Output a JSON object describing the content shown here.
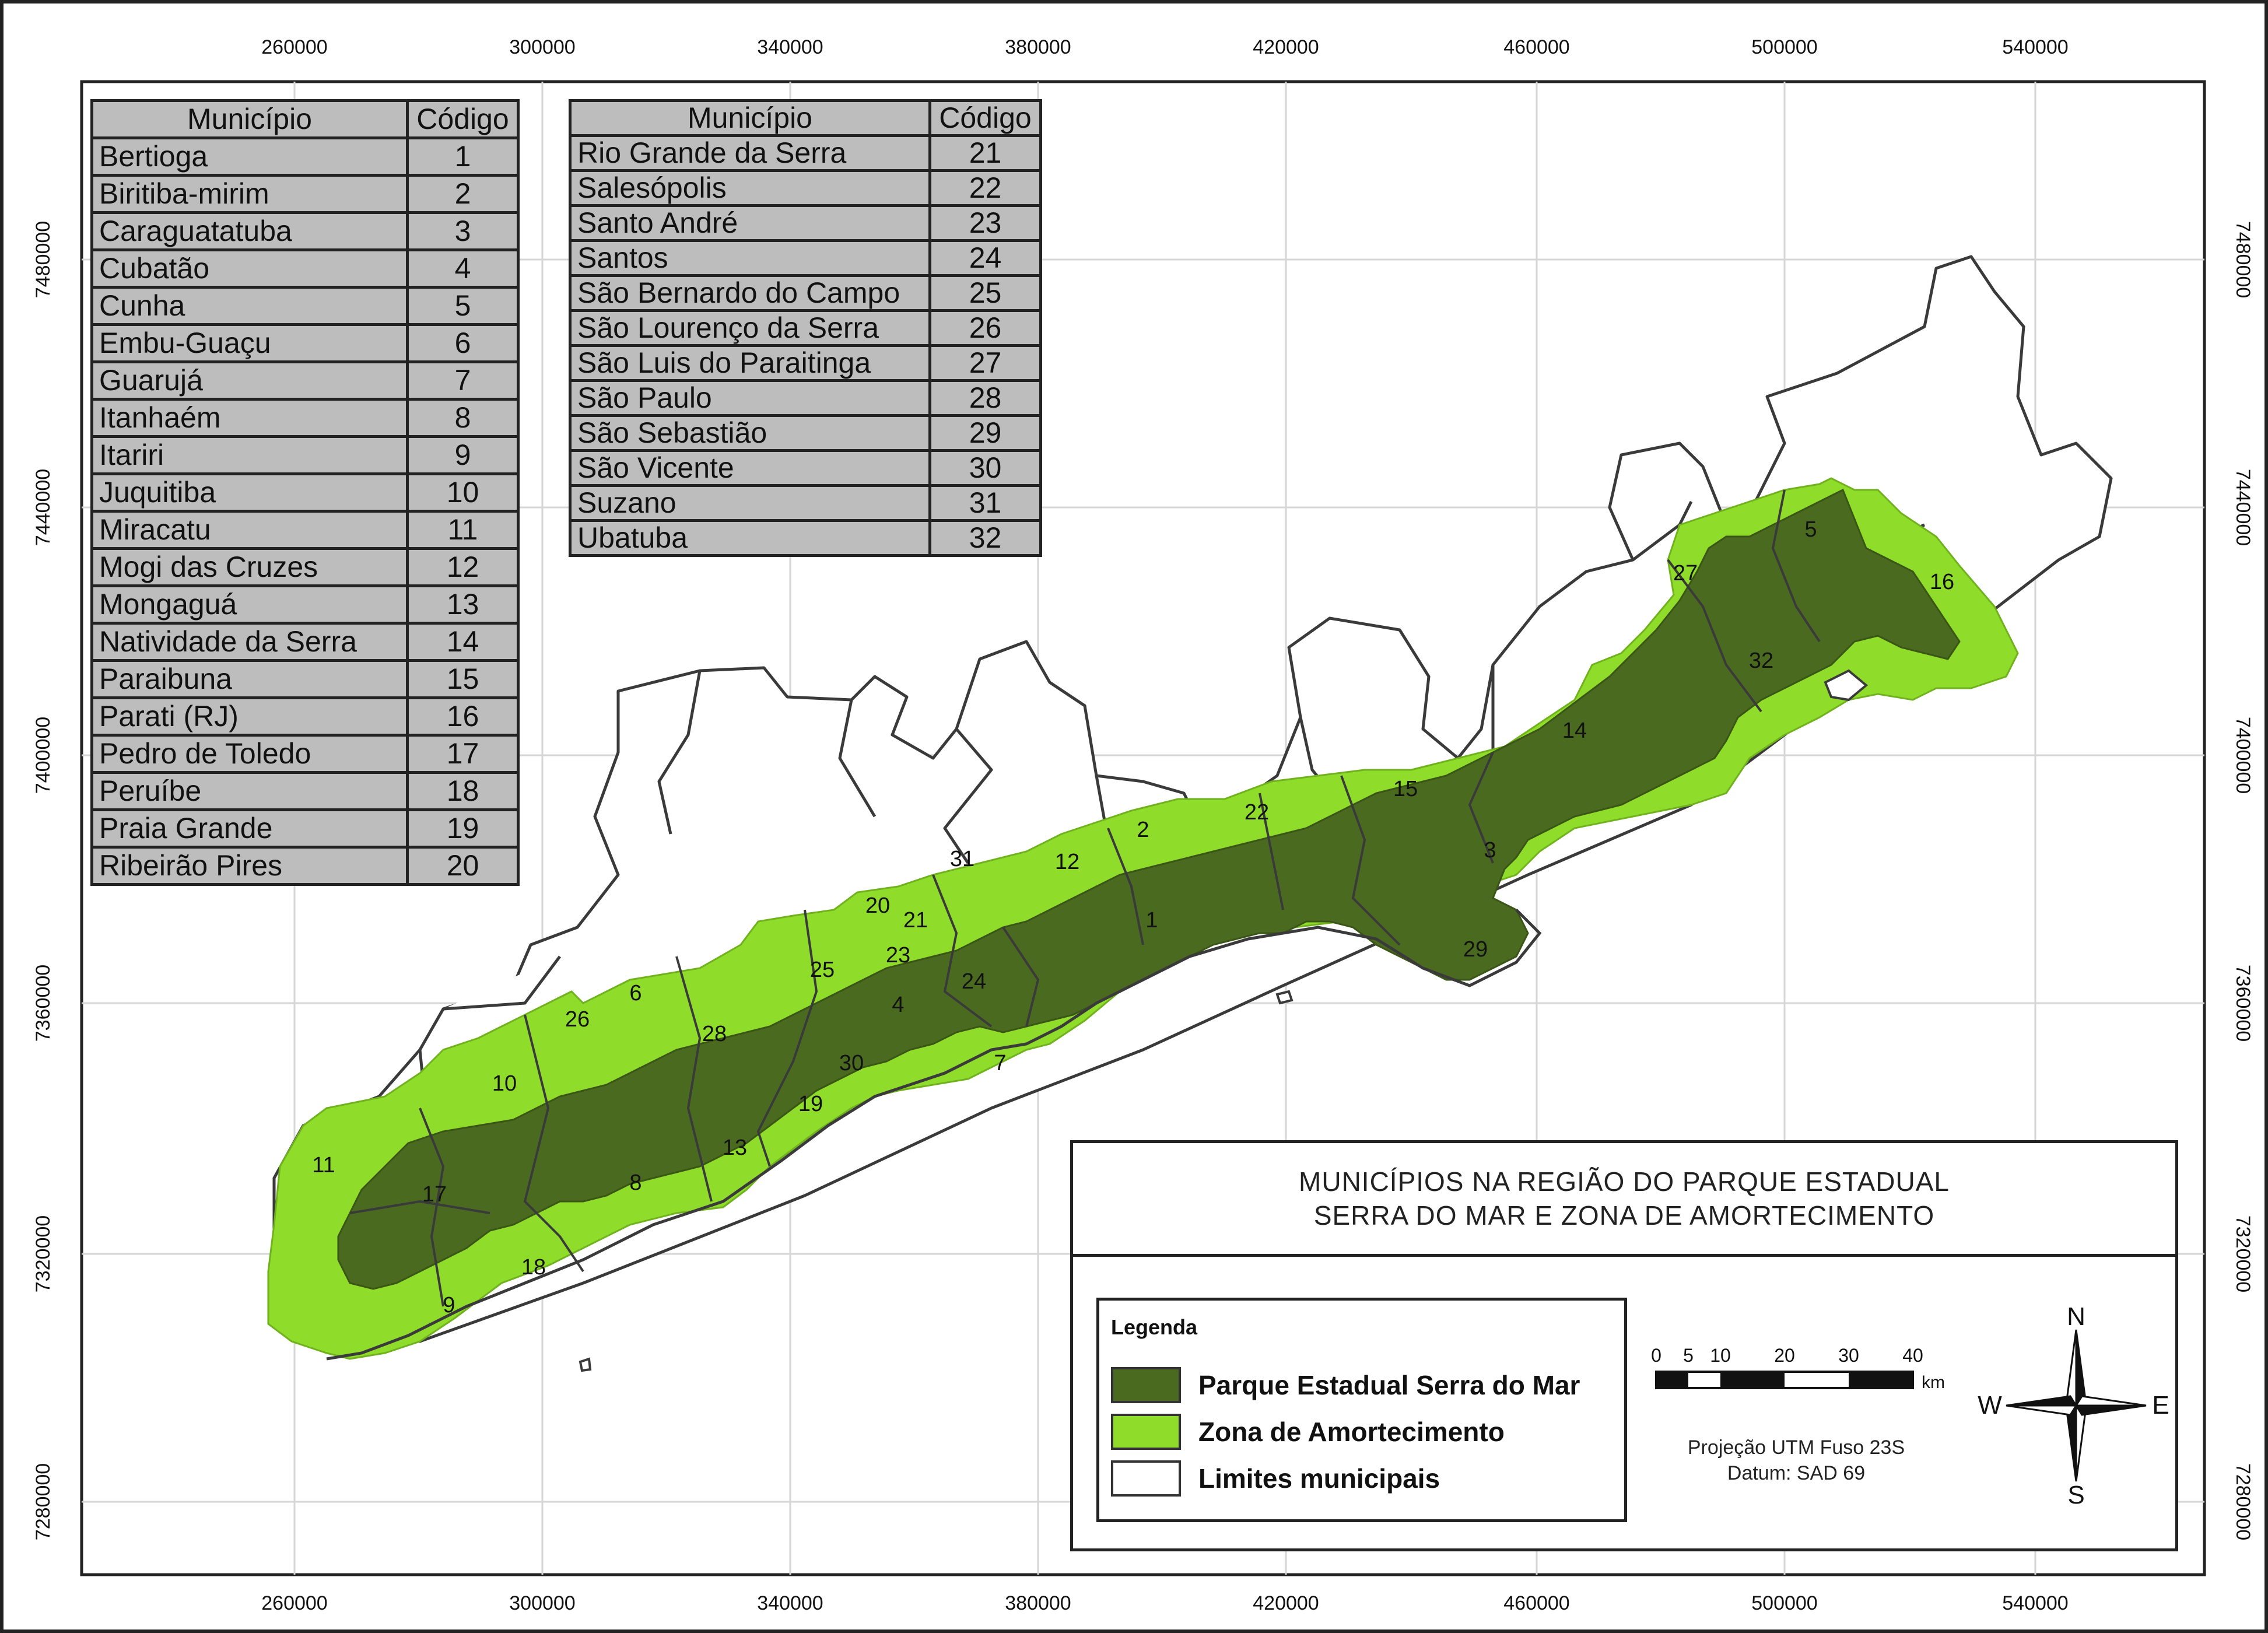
{
  "map_title": {
    "line1": "MUNICÍPIOS NA REGIÃO DO PARQUE ESTADUAL",
    "line2": "SERRA DO MAR E ZONA DE AMORTECIMENTO"
  },
  "axes": {
    "x_ticks": [
      "260000",
      "300000",
      "340000",
      "380000",
      "420000",
      "460000",
      "500000",
      "540000"
    ],
    "y_ticks": [
      "7480000",
      "7440000",
      "7400000",
      "7360000",
      "7320000",
      "7280000"
    ]
  },
  "table_headers": {
    "municipio": "Município",
    "codigo": "Código"
  },
  "table1": [
    {
      "name": "Bertioga",
      "code": "1"
    },
    {
      "name": "Biritiba-mirim",
      "code": "2"
    },
    {
      "name": "Caraguatatuba",
      "code": "3"
    },
    {
      "name": "Cubatão",
      "code": "4"
    },
    {
      "name": "Cunha",
      "code": "5"
    },
    {
      "name": "Embu-Guaçu",
      "code": "6"
    },
    {
      "name": "Guarujá",
      "code": "7"
    },
    {
      "name": "Itanhaém",
      "code": "8"
    },
    {
      "name": "Itariri",
      "code": "9"
    },
    {
      "name": "Juquitiba",
      "code": "10"
    },
    {
      "name": "Miracatu",
      "code": "11"
    },
    {
      "name": "Mogi das Cruzes",
      "code": "12"
    },
    {
      "name": "Mongaguá",
      "code": "13"
    },
    {
      "name": "Natividade da Serra",
      "code": "14"
    },
    {
      "name": "Paraibuna",
      "code": "15"
    },
    {
      "name": "Parati (RJ)",
      "code": "16"
    },
    {
      "name": "Pedro de Toledo",
      "code": "17"
    },
    {
      "name": "Peruíbe",
      "code": "18"
    },
    {
      "name": "Praia Grande",
      "code": "19"
    },
    {
      "name": "Ribeirão Pires",
      "code": "20"
    }
  ],
  "table2": [
    {
      "name": "Rio Grande da Serra",
      "code": "21"
    },
    {
      "name": "Salesópolis",
      "code": "22"
    },
    {
      "name": "Santo André",
      "code": "23"
    },
    {
      "name": "Santos",
      "code": "24"
    },
    {
      "name": "São Bernardo do Campo",
      "code": "25"
    },
    {
      "name": "São Lourenço da Serra",
      "code": "26"
    },
    {
      "name": "São Luis do Paraitinga",
      "code": "27"
    },
    {
      "name": "São Paulo",
      "code": "28"
    },
    {
      "name": "São Sebastião",
      "code": "29"
    },
    {
      "name": "São Vicente",
      "code": "30"
    },
    {
      "name": "Suzano",
      "code": "31"
    },
    {
      "name": "Ubatuba",
      "code": "32"
    }
  ],
  "map_labels": [
    "1",
    "2",
    "3",
    "4",
    "5",
    "6",
    "7",
    "8",
    "9",
    "10",
    "11",
    "12",
    "13",
    "14",
    "15",
    "16",
    "17",
    "18",
    "19",
    "20",
    "21",
    "22",
    "23",
    "24",
    "25",
    "26",
    "27",
    "28",
    "29",
    "30",
    "31",
    "32"
  ],
  "legend": {
    "title": "Legenda",
    "items": [
      {
        "label": "Parque Estadual Serra do Mar",
        "color": "#4a6b1f"
      },
      {
        "label": "Zona de Amortecimento",
        "color": "#8fdc2a"
      },
      {
        "label": "Limites municipais",
        "color": "#ffffff"
      }
    ]
  },
  "scale": {
    "ticks": [
      "0",
      "5",
      "10",
      "20",
      "30",
      "40"
    ],
    "unit": "km"
  },
  "projection": {
    "line1": "Projeção UTM Fuso 23S",
    "line2": "Datum: SAD 69"
  },
  "compass": {
    "n": "N",
    "s": "S",
    "e": "E",
    "w": "W"
  },
  "colors": {
    "park": "#4a6b1f",
    "buffer": "#8fdc2a",
    "boundary": "#3a3a3a",
    "table_bg": "#bdbdbd"
  }
}
